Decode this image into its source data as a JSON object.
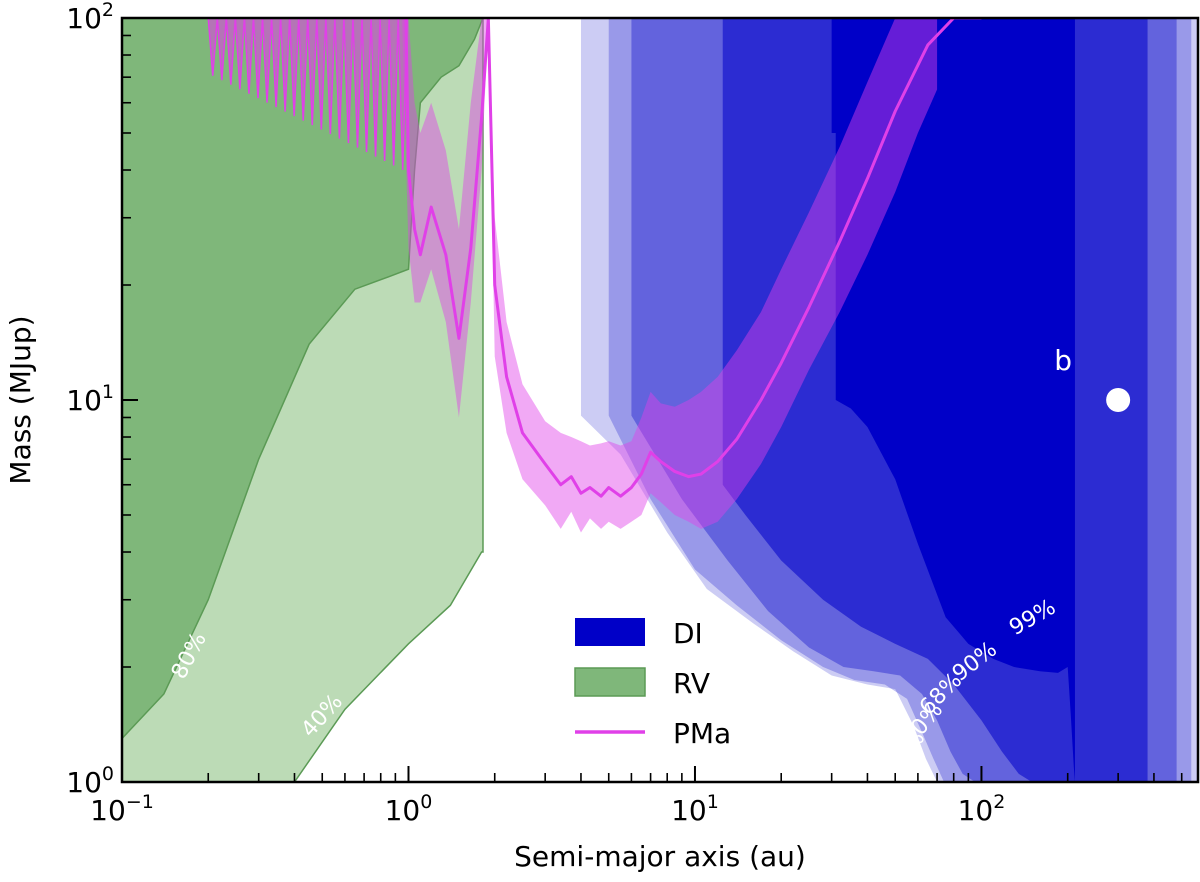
{
  "chart_data": {
    "type": "area",
    "xscale": "log",
    "yscale": "log",
    "xlim": [
      0.1,
      570
    ],
    "ylim": [
      1,
      100
    ],
    "xlabel": "Semi-major axis (au)",
    "ylabel": "Mass (MJup)",
    "x_ticks": [
      {
        "value": 0.1,
        "base": "10",
        "exp": "−1"
      },
      {
        "value": 1,
        "base": "10",
        "exp": "0"
      },
      {
        "value": 10,
        "base": "10",
        "exp": "1"
      },
      {
        "value": 100,
        "base": "10",
        "exp": "2"
      }
    ],
    "y_ticks": [
      {
        "value": 1,
        "base": "10",
        "exp": "0"
      },
      {
        "value": 10,
        "base": "10",
        "exp": "1"
      },
      {
        "value": 100,
        "base": "10",
        "exp": "2"
      }
    ],
    "legend": {
      "position": "lower center",
      "entries": [
        {
          "label": "DI",
          "color": "#0000c8",
          "kind": "patch"
        },
        {
          "label": "RV",
          "color": "#7fb77a",
          "kind": "patch"
        },
        {
          "label": "PMa",
          "color": "#e040e8",
          "kind": "line"
        }
      ]
    },
    "colors": {
      "di": "#0000c8",
      "rv_dark": "#7fb77a",
      "rv_light": "#bcdbb6",
      "rv_edge": "#5b9a55",
      "pma_line": "#e040e8",
      "pma_band": "#e040e8",
      "contour_label": "#ffffff"
    },
    "series": [
      {
        "name": "DI",
        "region": "di",
        "level": "10%",
        "opacity": 0.2,
        "x": [
          4.0,
          4.0,
          5.5,
          8,
          11,
          16,
          22,
          30,
          40,
          50,
          58,
          64,
          70,
          75,
          80,
          300,
          330,
          360,
          380,
          420,
          440,
          460,
          480,
          570
        ],
        "y": [
          100,
          9.1,
          7.2,
          4.5,
          3.2,
          2.6,
          2.2,
          1.9,
          1.8,
          1.75,
          1.4,
          1.15,
          1.0,
          1.0,
          1.0,
          1.0,
          1.0,
          1.0,
          1.0,
          1.0,
          1.0,
          1.0,
          1.0,
          1.0
        ]
      },
      {
        "name": "DI",
        "region": "di",
        "level": "50%",
        "opacity": 0.25,
        "x": [
          5.0,
          5.0,
          7,
          10,
          14,
          20,
          28,
          36,
          46,
          55,
          62,
          68,
          74,
          78,
          82,
          500,
          520,
          540
        ],
        "y": [
          100,
          9.1,
          5.5,
          3.6,
          2.9,
          2.35,
          2.0,
          1.85,
          1.8,
          1.65,
          1.35,
          1.15,
          1.0,
          1.0,
          1.0,
          1.0,
          1.0,
          1.0
        ]
      },
      {
        "name": "DI",
        "region": "di",
        "level": "68%",
        "opacity": 0.35,
        "x": [
          6.0,
          6.0,
          9,
          13,
          18,
          25,
          33,
          42,
          52,
          62,
          70,
          78,
          86,
          95,
          440,
          460,
          480
        ],
        "y": [
          100,
          9.1,
          5.5,
          3.8,
          2.8,
          2.25,
          2.0,
          1.95,
          1.9,
          1.7,
          1.45,
          1.2,
          1.05,
          1.0,
          1.0,
          1.0,
          1.0
        ]
      },
      {
        "name": "DI",
        "region": "di",
        "level": "90%",
        "opacity": 0.55,
        "x": [
          12.5,
          12.5,
          15,
          20,
          28,
          38,
          50,
          65,
          80,
          100,
          118,
          135,
          150,
          160,
          175,
          330,
          350,
          380
        ],
        "y": [
          100,
          6.0,
          5.0,
          3.8,
          3.0,
          2.55,
          2.3,
          2.1,
          1.8,
          1.45,
          1.2,
          1.05,
          1.0,
          1.0,
          1.0,
          1.0,
          1.0,
          1.0
        ]
      },
      {
        "name": "DI",
        "region": "di",
        "level": "99%",
        "opacity": 1.0,
        "x": [
          30,
          30,
          31,
          31,
          35,
          40,
          50,
          60,
          75,
          90,
          110,
          130,
          160,
          185,
          200,
          205,
          210,
          212
        ],
        "y": [
          100,
          50,
          50,
          10,
          9.5,
          8.5,
          6.2,
          4.2,
          2.7,
          2.3,
          2.1,
          2.0,
          1.95,
          1.93,
          2.0,
          1.5,
          1.1,
          1.0
        ]
      },
      {
        "name": "RV",
        "region": "rv",
        "level": "40%",
        "x": [
          0.1,
          0.14,
          0.2,
          0.3,
          0.4,
          0.6,
          1.0,
          1.4,
          1.8,
          1.82,
          1.82
        ],
        "y": [
          1.0,
          1.0,
          1.0,
          1.0,
          1.0,
          1.55,
          2.3,
          2.9,
          4.0,
          4.0,
          100
        ]
      },
      {
        "name": "RV",
        "region": "rv",
        "level": "80%",
        "x": [
          0.1,
          0.14,
          0.2,
          0.3,
          0.45,
          0.65,
          0.85,
          1.0,
          1.05,
          1.1,
          1.3,
          1.5,
          1.7,
          1.82
        ],
        "y": [
          1.3,
          1.7,
          3.0,
          7.0,
          14.0,
          19.5,
          21.0,
          22.0,
          40.0,
          60.0,
          70.0,
          75.0,
          88.0,
          100
        ]
      },
      {
        "name": "PMa",
        "region": "pma",
        "kind": "line",
        "x": [
          0.98,
          1.0,
          1.05,
          1.1,
          1.2,
          1.35,
          1.5,
          1.65,
          1.8,
          1.9,
          2.0,
          2.2,
          2.5,
          3.0,
          3.4,
          3.7,
          4.0,
          4.3,
          4.7,
          5.0,
          5.5,
          6.0,
          6.5,
          7.0,
          7.6,
          8.5,
          9.5,
          10.5,
          12,
          14,
          17,
          20,
          25,
          32,
          40,
          50,
          65,
          80,
          95,
          100
        ],
        "y": [
          100,
          40,
          28,
          24,
          32,
          24,
          14.5,
          25,
          55,
          100,
          20,
          11.5,
          8.2,
          6.8,
          6.0,
          6.3,
          5.7,
          5.9,
          5.6,
          5.9,
          5.6,
          5.9,
          6.4,
          7.3,
          6.9,
          6.5,
          6.3,
          6.4,
          6.9,
          7.9,
          10.0,
          12.5,
          17.5,
          26,
          38,
          57,
          85,
          100,
          100,
          100
        ]
      }
    ],
    "pma_band": {
      "x": [
        0.95,
        1.0,
        1.05,
        1.1,
        1.2,
        1.35,
        1.5,
        1.65,
        1.8,
        1.9,
        2.0,
        2.2,
        2.5,
        3.0,
        3.4,
        3.7,
        4.0,
        4.3,
        4.7,
        5.0,
        5.5,
        6.0,
        6.5,
        7.0,
        7.6,
        8.5,
        9.5,
        10.5,
        12,
        14,
        17,
        20,
        25,
        32,
        40,
        50,
        60,
        70
      ],
      "upper": [
        100,
        100,
        60,
        50,
        60,
        45,
        28,
        60,
        100,
        100,
        30,
        16,
        11,
        8.8,
        8.2,
        8.0,
        7.8,
        7.6,
        7.7,
        7.8,
        7.6,
        7.8,
        9,
        10.5,
        9.8,
        9.6,
        10,
        10.5,
        11.5,
        13.5,
        17,
        22,
        31,
        46,
        68,
        100,
        100,
        100
      ],
      "lower": [
        100,
        25,
        18,
        18,
        22,
        16,
        9.0,
        18,
        40,
        100,
        13,
        8.2,
        6.2,
        5.3,
        4.6,
        5.1,
        4.5,
        4.9,
        4.6,
        4.8,
        4.6,
        4.8,
        5.0,
        5.7,
        5.4,
        5.0,
        4.8,
        4.6,
        4.8,
        5.5,
        6.8,
        8.5,
        12,
        17,
        24,
        35,
        50,
        65
      ]
    },
    "pma_spikes": {
      "x_start": 0.2,
      "x_end": 0.99,
      "count": 22,
      "top": 100,
      "bottom_min": 40
    },
    "annotations": [
      {
        "text": "80%",
        "x": 0.18,
        "y": 2.1,
        "rotation": -62
      },
      {
        "text": "40%",
        "x": 0.52,
        "y": 1.45,
        "rotation": -48
      },
      {
        "text": "99%",
        "x": 155,
        "y": 2.6,
        "rotation": -30
      },
      {
        "text": "90%",
        "x": 98,
        "y": 2.0,
        "rotation": -38
      },
      {
        "text": "68%",
        "x": 75,
        "y": 1.65,
        "rotation": -45
      },
      {
        "text": "50%",
        "x": 65,
        "y": 1.38,
        "rotation": -50
      },
      {
        "text": "10%",
        "x": 57,
        "y": 1.16,
        "rotation": -55
      }
    ],
    "planet": {
      "label": "b",
      "x": 300,
      "y": 10,
      "yerr": [
        9.5,
        10.5
      ]
    }
  }
}
